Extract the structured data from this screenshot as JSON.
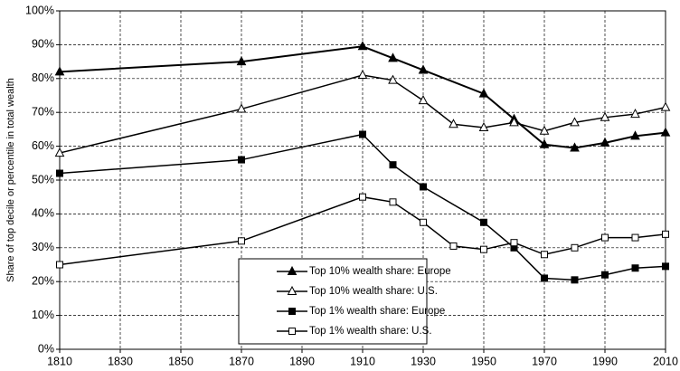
{
  "chart_data": {
    "type": "line",
    "y_label": "Share of top decile or percentile in total wealth",
    "xlim": [
      1810,
      2010
    ],
    "xticks": [
      1810,
      1830,
      1850,
      1870,
      1890,
      1910,
      1930,
      1950,
      1970,
      1990,
      2010
    ],
    "ylim": [
      0,
      100
    ],
    "yticks": [
      {
        "value": 0,
        "label": "0%"
      },
      {
        "value": 10,
        "label": "10%"
      },
      {
        "value": 20,
        "label": "20%"
      },
      {
        "value": 30,
        "label": "30%"
      },
      {
        "value": 40,
        "label": "40%"
      },
      {
        "value": 50,
        "label": "50%"
      },
      {
        "value": 60,
        "label": "60%"
      },
      {
        "value": 70,
        "label": "70%"
      },
      {
        "value": 80,
        "label": "80%"
      },
      {
        "value": 90,
        "label": "90%"
      },
      {
        "value": 100,
        "label": "100%"
      }
    ],
    "grid": true,
    "legend": "lower center",
    "series": [
      {
        "name": "Top 10% wealth share: Europe",
        "color": "#000000",
        "marker": "triangle",
        "filled": true,
        "x": [
          1810,
          1870,
          1910,
          1920,
          1930,
          1950,
          1960,
          1970,
          1980,
          1990,
          2000,
          2010
        ],
        "values": [
          82,
          85,
          89.5,
          86,
          82.5,
          75.5,
          68,
          60.5,
          59.5,
          61,
          63,
          64
        ]
      },
      {
        "name": "Top 10% wealth share: U.S.",
        "color": "#000000",
        "marker": "triangle",
        "filled": false,
        "x": [
          1810,
          1870,
          1910,
          1920,
          1930,
          1940,
          1950,
          1960,
          1970,
          1980,
          1990,
          2000,
          2010
        ],
        "values": [
          58,
          71,
          81,
          79.5,
          73.5,
          66.5,
          65.5,
          67,
          64.5,
          67,
          68.5,
          69.5,
          71.5
        ]
      },
      {
        "name": "Top 1% wealth share: Europe",
        "color": "#000000",
        "marker": "square",
        "filled": true,
        "x": [
          1810,
          1870,
          1910,
          1920,
          1930,
          1950,
          1960,
          1970,
          1980,
          1990,
          2000,
          2010
        ],
        "values": [
          52,
          56,
          63.5,
          54.5,
          48,
          37.5,
          30,
          21,
          20.5,
          22,
          24,
          24.5
        ]
      },
      {
        "name": "Top 1% wealth share: U.S.",
        "color": "#000000",
        "marker": "square",
        "filled": false,
        "x": [
          1810,
          1870,
          1910,
          1920,
          1930,
          1940,
          1950,
          1960,
          1970,
          1980,
          1990,
          2000,
          2010
        ],
        "values": [
          25,
          32,
          45,
          43.5,
          37.5,
          30.5,
          29.5,
          31.5,
          28,
          30,
          33,
          33,
          34
        ]
      }
    ]
  }
}
